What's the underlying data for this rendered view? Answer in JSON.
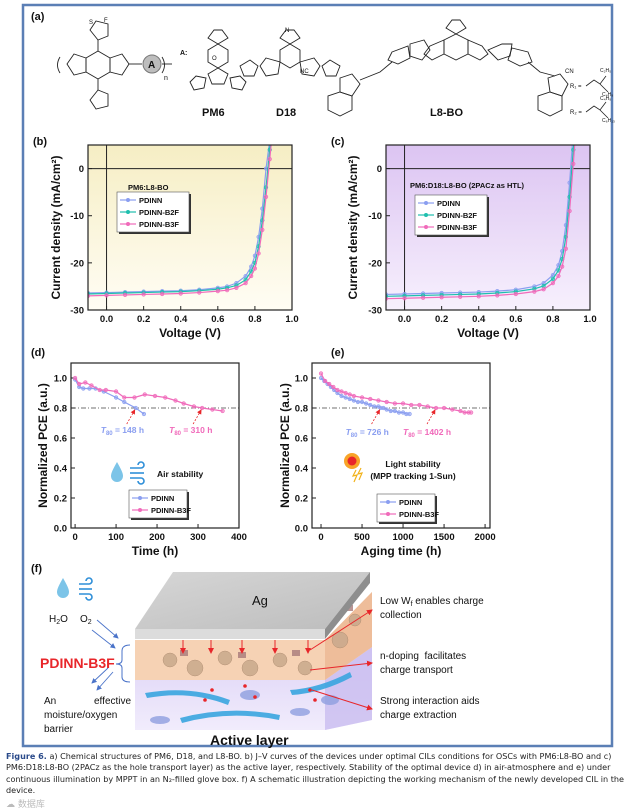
{
  "panels": {
    "a": "(a)",
    "b": "(b)",
    "c": "(c)",
    "d": "(d)",
    "e": "(e)",
    "f": "(f)"
  },
  "structures": {
    "a_label": "A:",
    "a_circle": "A",
    "n": "n",
    "pm6": "PM6",
    "d18": "D18",
    "l8bo": "L8-BO",
    "r1": "R₁ =",
    "r2": "R₂ =",
    "r1_sub": [
      "C₂H₅",
      "C₄H₉"
    ],
    "r2_sub": [
      "C₄H₉",
      "C₆H₁₃"
    ],
    "nc": "NC",
    "cn": "CN",
    "f": "F",
    "s": "S",
    "n_atom": "N",
    "o": "O"
  },
  "colors": {
    "pdinn": "#8a9ef0",
    "b2f": "#1fbfae",
    "b3f": "#f06aba",
    "frame": "#5b7fb5",
    "red": "#e8262a"
  },
  "chart_data": [
    {
      "id": "b",
      "type": "line",
      "annotation": "PM6:L8-BO",
      "xlabel": "Voltage (V)",
      "ylabel": "Current density (mA/cm²)",
      "xlim": [
        -0.1,
        1.0
      ],
      "ylim": [
        -30,
        5
      ],
      "xticks": [
        "0.0",
        "0.2",
        "0.4",
        "0.6",
        "0.8",
        "1.0"
      ],
      "xtick_values": [
        0,
        0.2,
        0.4,
        0.6,
        0.8,
        1.0
      ],
      "yticks": [
        "-30",
        "-20",
        "-10",
        "0"
      ],
      "ytick_values": [
        -30,
        -20,
        -10,
        0
      ],
      "x": [
        -0.1,
        0,
        0.1,
        0.2,
        0.3,
        0.4,
        0.5,
        0.6,
        0.65,
        0.7,
        0.75,
        0.78,
        0.8,
        0.82,
        0.84,
        0.86,
        0.88,
        0.9
      ],
      "series": [
        {
          "name": "PDINN",
          "color": "#8a9ef0",
          "values": [
            -26.4,
            -26.3,
            -26.2,
            -26.1,
            -26.0,
            -25.9,
            -25.7,
            -25.3,
            -25.0,
            -24.3,
            -22.8,
            -20.8,
            -18.5,
            -14.5,
            -8.5,
            0,
            6,
            14
          ]
        },
        {
          "name": "PDINN-B2F",
          "color": "#1fbfae",
          "values": [
            -26.6,
            -26.5,
            -26.4,
            -26.3,
            -26.2,
            -26.1,
            -25.9,
            -25.6,
            -25.3,
            -24.8,
            -23.6,
            -21.8,
            -20.0,
            -16.5,
            -11.0,
            -4,
            4,
            12
          ]
        },
        {
          "name": "PDINN-B3F",
          "color": "#f06aba",
          "values": [
            -27.0,
            -26.9,
            -26.8,
            -26.7,
            -26.6,
            -26.5,
            -26.3,
            -26.0,
            -25.8,
            -25.3,
            -24.3,
            -22.8,
            -21.2,
            -18,
            -13,
            -6,
            2,
            10
          ]
        }
      ]
    },
    {
      "id": "c",
      "type": "line",
      "annotation": "PM6:D18:L8-BO (2PACz as HTL)",
      "xlabel": "Voltage (V)",
      "ylabel": "Current density (mA/cm²)",
      "xlim": [
        -0.1,
        1.0
      ],
      "ylim": [
        -30,
        5
      ],
      "xticks": [
        "0.0",
        "0.2",
        "0.4",
        "0.6",
        "0.8",
        "1.0"
      ],
      "xtick_values": [
        0,
        0.2,
        0.4,
        0.6,
        0.8,
        1.0
      ],
      "yticks": [
        "-30",
        "-20",
        "-10",
        "0"
      ],
      "ytick_values": [
        -30,
        -20,
        -10,
        0
      ],
      "x": [
        -0.1,
        0,
        0.1,
        0.2,
        0.3,
        0.4,
        0.5,
        0.6,
        0.7,
        0.75,
        0.8,
        0.83,
        0.85,
        0.87,
        0.89,
        0.91,
        0.93
      ],
      "series": [
        {
          "name": "PDINN",
          "color": "#8a9ef0",
          "values": [
            -26.7,
            -26.6,
            -26.5,
            -26.4,
            -26.3,
            -26.2,
            -26.0,
            -25.7,
            -25.0,
            -24.3,
            -22.6,
            -20.5,
            -17.5,
            -12,
            -3,
            8,
            20
          ]
        },
        {
          "name": "PDINN-B2F",
          "color": "#1fbfae",
          "values": [
            -27.1,
            -27.0,
            -26.9,
            -26.8,
            -26.7,
            -26.6,
            -26.4,
            -26.1,
            -25.5,
            -24.9,
            -23.4,
            -21.6,
            -19.2,
            -14.5,
            -6,
            4,
            16
          ]
        },
        {
          "name": "PDINN-B3F",
          "color": "#f06aba",
          "values": [
            -27.6,
            -27.5,
            -27.4,
            -27.3,
            -27.2,
            -27.1,
            -26.9,
            -26.6,
            -26.1,
            -25.6,
            -24.3,
            -22.8,
            -20.8,
            -17,
            -9,
            1,
            12
          ]
        }
      ]
    },
    {
      "id": "d",
      "type": "line",
      "xlabel": "Time (h)",
      "ylabel": "Normalized PCE (a.u.)",
      "xlim": [
        -10,
        400
      ],
      "ylim": [
        0,
        1.1
      ],
      "xticks": [
        "0",
        "100",
        "200",
        "300",
        "400"
      ],
      "xtick_values": [
        0,
        100,
        200,
        300,
        400
      ],
      "yticks": [
        "0.0",
        "0.2",
        "0.4",
        "0.6",
        "0.8",
        "1.0"
      ],
      "ytick_values": [
        0,
        0.2,
        0.4,
        0.6,
        0.8,
        1.0
      ],
      "reference_line": 0.8,
      "note": "Air stability",
      "t80": [
        {
          "label": "T",
          "sub": "80",
          "text": " = 148 h",
          "x": 148,
          "color": "#8a9ef0"
        },
        {
          "label": "T",
          "sub": "80",
          "text": " = 310 h",
          "x": 310,
          "color": "#f06aba"
        }
      ],
      "series": [
        {
          "name": "PDINN",
          "color": "#8a9ef0",
          "x": [
            0,
            10,
            20,
            35,
            50,
            70,
            100,
            120,
            148,
            168
          ],
          "values": [
            0.99,
            0.94,
            0.93,
            0.93,
            0.93,
            0.91,
            0.87,
            0.84,
            0.8,
            0.76
          ]
        },
        {
          "name": "PDINN-B3F",
          "color": "#f06aba",
          "x": [
            0,
            10,
            25,
            40,
            60,
            75,
            100,
            120,
            145,
            170,
            195,
            220,
            245,
            265,
            290,
            310,
            335,
            360
          ],
          "values": [
            1.0,
            0.96,
            0.97,
            0.95,
            0.92,
            0.92,
            0.91,
            0.87,
            0.87,
            0.89,
            0.88,
            0.87,
            0.85,
            0.83,
            0.81,
            0.8,
            0.79,
            0.78
          ]
        }
      ]
    },
    {
      "id": "e",
      "type": "line",
      "xlabel": "Aging time (h)",
      "ylabel": "Normalized PCE (a.u.)",
      "xlim": [
        -110,
        2060
      ],
      "ylim": [
        0,
        1.1
      ],
      "xticks": [
        "0",
        "500",
        "1000",
        "1500",
        "2000"
      ],
      "xtick_values": [
        0,
        500,
        1000,
        1500,
        2000
      ],
      "yticks": [
        "0.0",
        "0.2",
        "0.4",
        "0.6",
        "0.8",
        "1.0"
      ],
      "ytick_values": [
        0,
        0.2,
        0.4,
        0.6,
        0.8,
        1.0
      ],
      "reference_line": 0.8,
      "note": [
        "Light stability",
        "(MPP tracking 1-Sun)"
      ],
      "t80": [
        {
          "label": "T",
          "sub": "80",
          "text": " = 726 h",
          "x": 726,
          "color": "#8a9ef0"
        },
        {
          "label": "T",
          "sub": "80",
          "text": " = 1402 h",
          "x": 1402,
          "color": "#f06aba"
        }
      ],
      "series": [
        {
          "name": "PDINN",
          "color": "#8a9ef0",
          "x": [
            0,
            40,
            80,
            120,
            160,
            200,
            250,
            300,
            350,
            400,
            450,
            500,
            550,
            600,
            650,
            700,
            726,
            760,
            800,
            850,
            900,
            950,
            1000,
            1040,
            1080
          ],
          "values": [
            1.0,
            0.98,
            0.96,
            0.94,
            0.92,
            0.9,
            0.88,
            0.87,
            0.86,
            0.85,
            0.84,
            0.84,
            0.83,
            0.82,
            0.81,
            0.81,
            0.8,
            0.8,
            0.79,
            0.78,
            0.78,
            0.77,
            0.77,
            0.76,
            0.76
          ]
        },
        {
          "name": "PDINN-B3F",
          "color": "#f06aba",
          "x": [
            0,
            50,
            100,
            150,
            200,
            250,
            300,
            350,
            400,
            500,
            600,
            700,
            800,
            900,
            1000,
            1100,
            1200,
            1300,
            1402,
            1500,
            1600,
            1700,
            1750,
            1800,
            1830
          ],
          "values": [
            1.03,
            0.98,
            0.96,
            0.94,
            0.92,
            0.91,
            0.9,
            0.89,
            0.88,
            0.87,
            0.86,
            0.85,
            0.84,
            0.83,
            0.83,
            0.82,
            0.82,
            0.81,
            0.8,
            0.8,
            0.79,
            0.78,
            0.77,
            0.77,
            0.77
          ]
        }
      ]
    }
  ],
  "schematic": {
    "ag": "Ag",
    "active_layer": "Active layer",
    "h2o": [
      "H",
      "2",
      "O"
    ],
    "o2": [
      "O",
      "2"
    ],
    "material": "PDINN-B3F",
    "barrier": [
      "An",
      "effective",
      "moisture/oxygen",
      "barrier"
    ],
    "callouts": [
      [
        "Low W",
        "f",
        " enables charge",
        "collection"
      ],
      [
        "n-doping  facilitates",
        "charge transport"
      ],
      [
        "Strong interaction aids",
        "charge extraction"
      ]
    ]
  },
  "caption": {
    "label": "Figure 6.",
    "text": " a) Chemical structures of PM6, D18, and L8-BO. b) J–V curves of the devices under optimal CILs conditions for OSCs with PM6:L8-BO and c) PM6:D18:L8-BO (2PACz as the hole transport layer) as the active layer, respectively. Stability of the optimal device d) in air-atmosphere and e) under continuous illumination by MPPT in an N₂-filled glove box. f) A schematic illustration depicting the working mechanism of the newly developed CIL in the device.",
    "watermark": "☁ 数据库"
  }
}
